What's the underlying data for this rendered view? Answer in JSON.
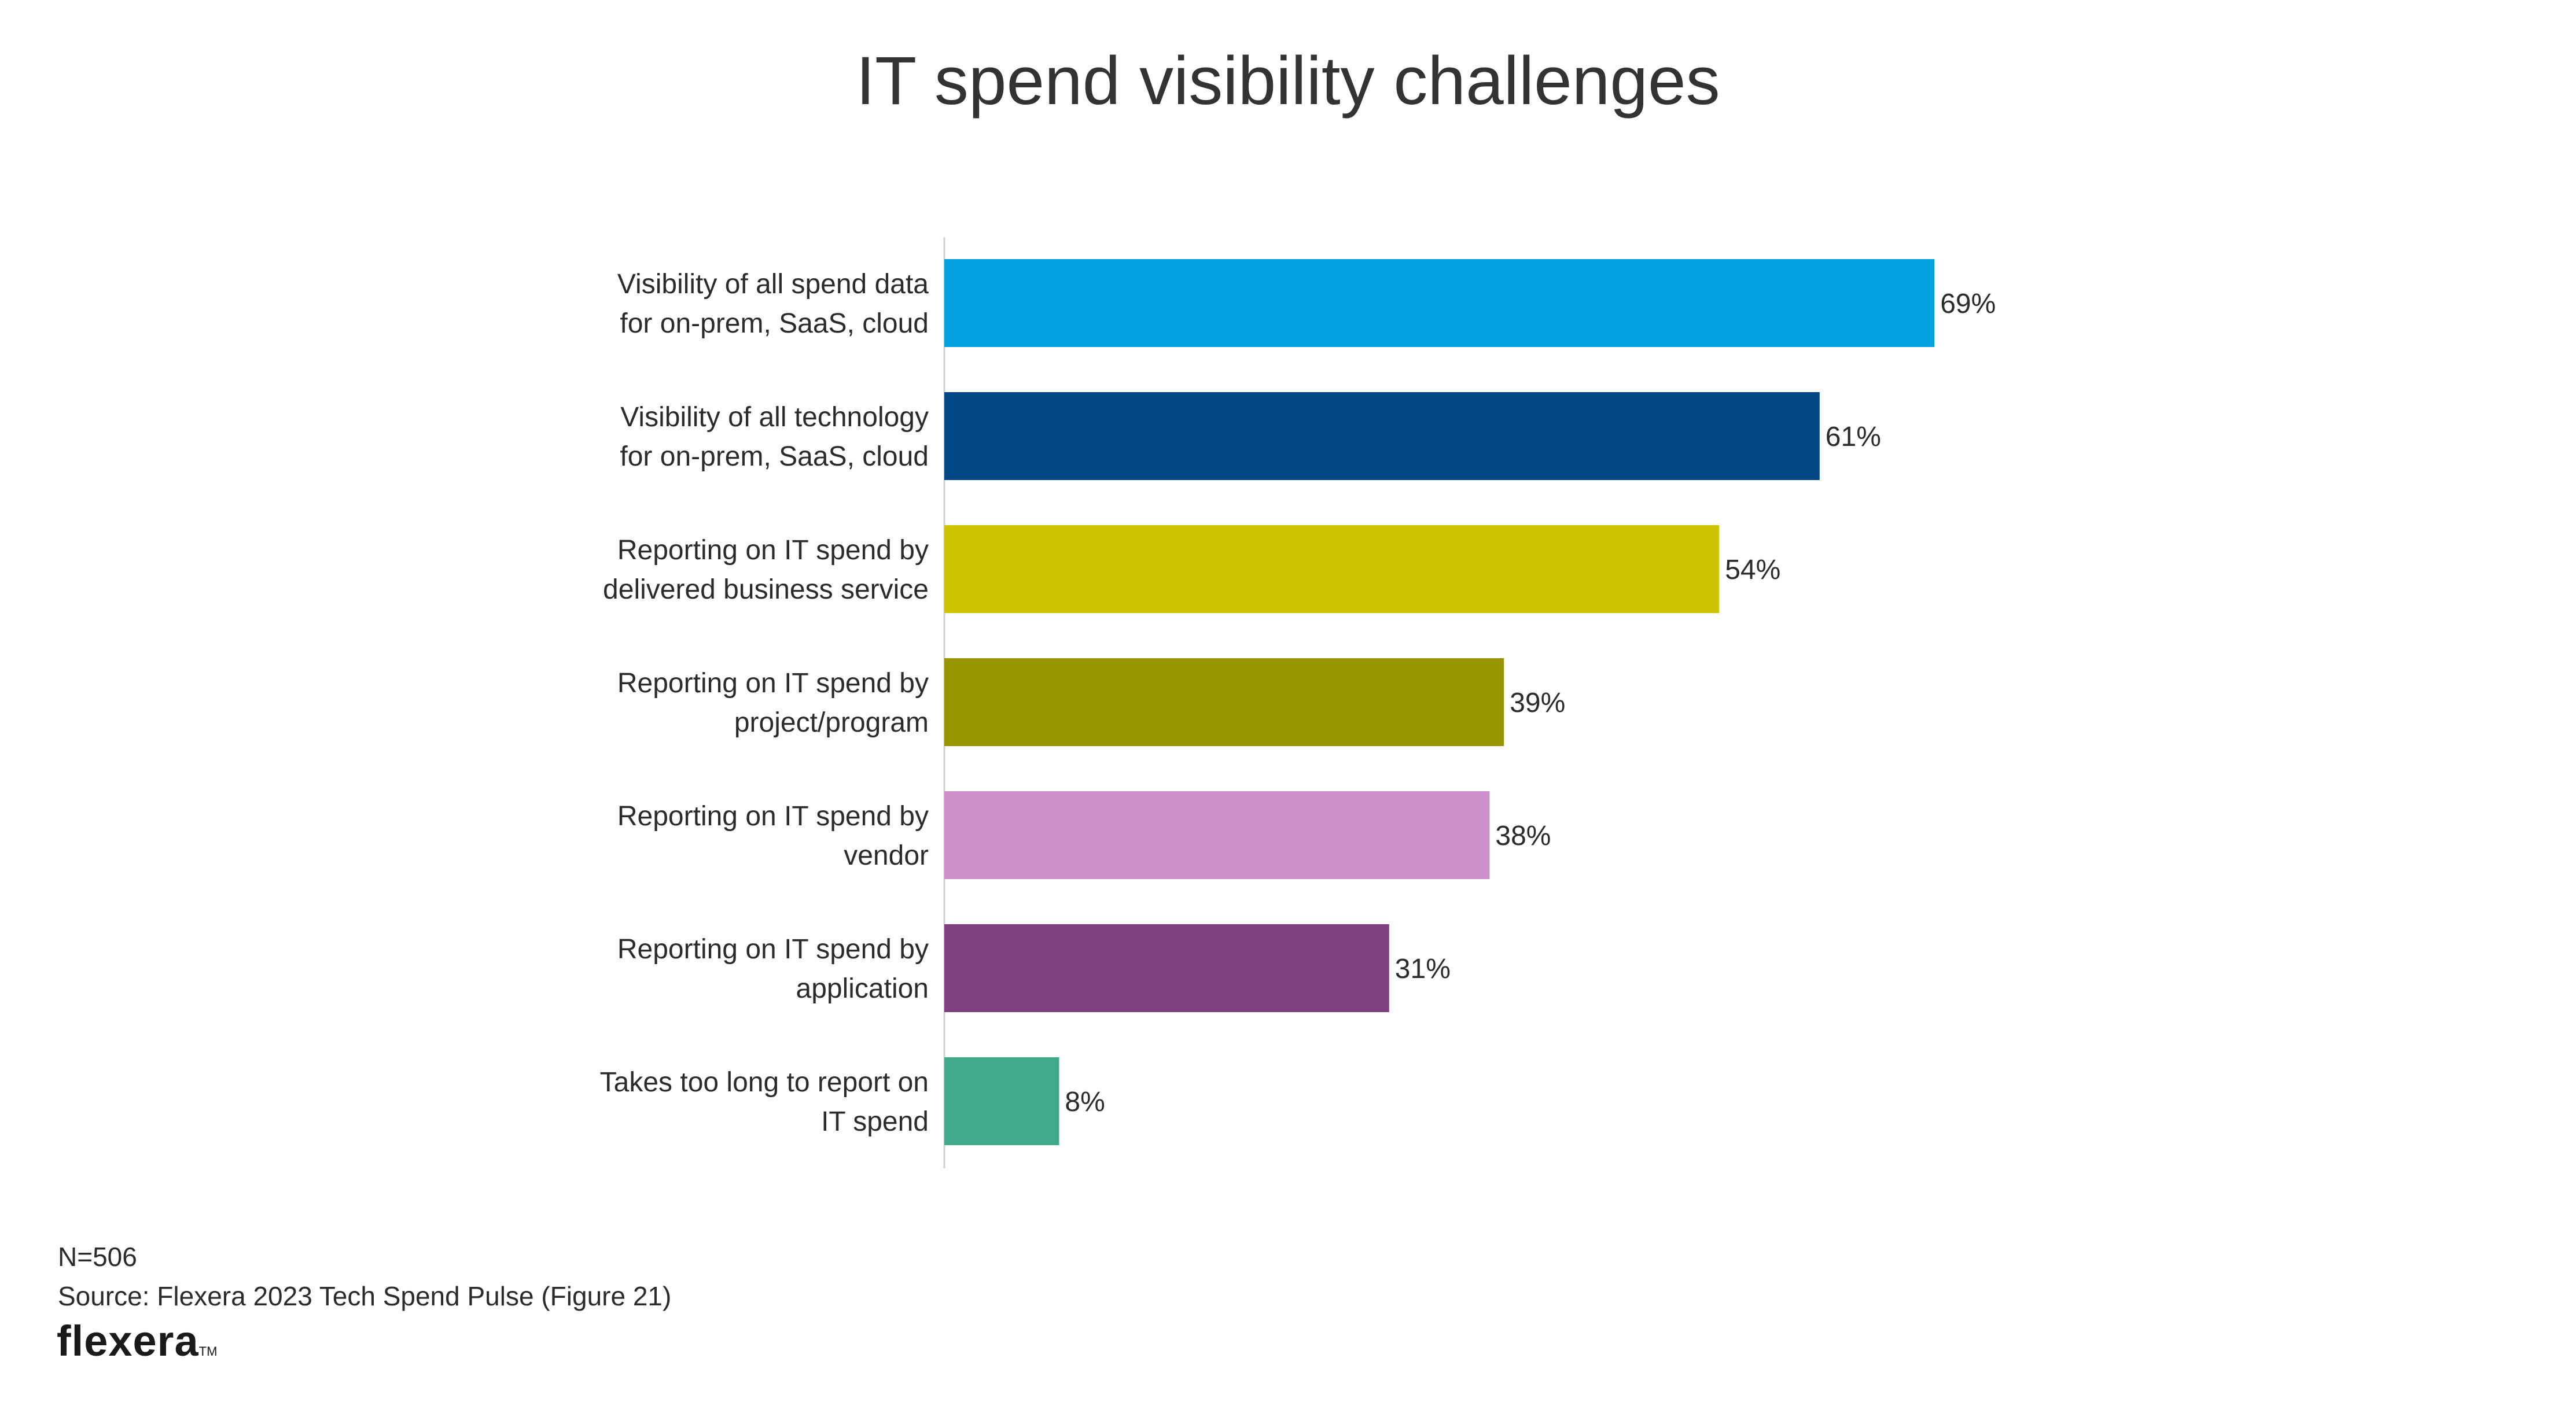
{
  "chart_data": {
    "type": "bar",
    "orientation": "horizontal",
    "title": "IT spend visibility challenges",
    "categories": [
      [
        "Visibility of all spend data",
        "for on-prem, SaaS, cloud"
      ],
      [
        "Visibility of all technology",
        "for on-prem, SaaS, cloud"
      ],
      [
        "Reporting on IT spend by",
        "delivered business service"
      ],
      [
        "Reporting on IT spend by",
        "project/program"
      ],
      [
        "Reporting on IT spend by",
        "vendor"
      ],
      [
        "Reporting on IT spend by",
        "application"
      ],
      [
        "Takes too long to report on",
        "IT spend"
      ]
    ],
    "values": [
      69,
      61,
      54,
      39,
      38,
      31,
      8
    ],
    "value_labels": [
      "69%",
      "61%",
      "54%",
      "39%",
      "38%",
      "31%",
      "8%"
    ],
    "colors": [
      "#04a3e0",
      "#004683",
      "#cdc300",
      "#989400",
      "#cd8fc9",
      "#7e3e80",
      "#3fa98a"
    ],
    "xlim": [
      0,
      100
    ],
    "grid": false,
    "legend": "none"
  },
  "notes": {
    "sample": "N=506",
    "source": "Source: Flexera 2023 Tech Spend Pulse (Figure 21)"
  },
  "brand": {
    "logo_text": "flexera",
    "logo_mark": "TM"
  }
}
